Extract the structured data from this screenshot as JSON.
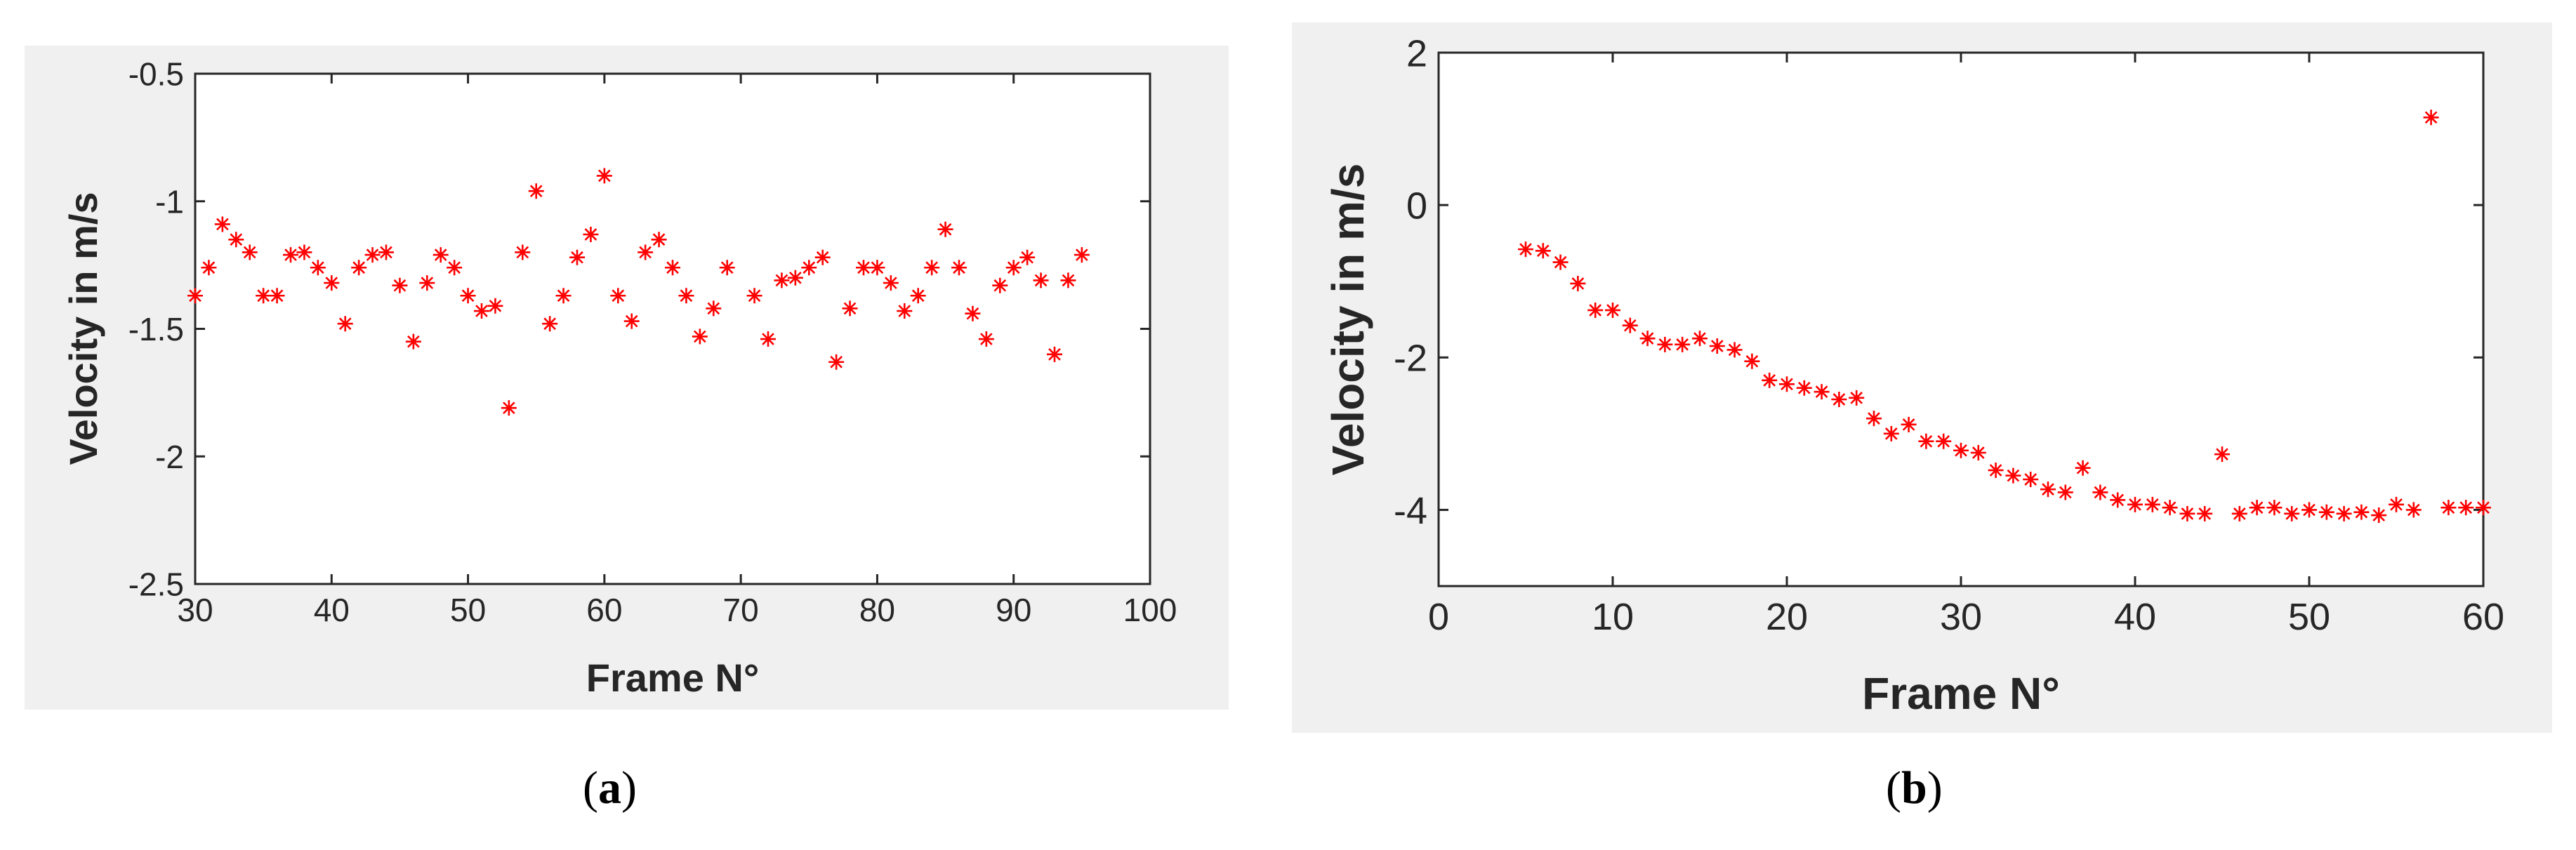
{
  "chart_data": [
    {
      "type": "scatter",
      "marker": "*",
      "color": "#ff0000",
      "xlabel": "Frame N°",
      "ylabel": "Velocity in m/s",
      "xlim": [
        30,
        100
      ],
      "ylim": [
        -2.5,
        -0.5
      ],
      "xticks": [
        "30",
        "40",
        "50",
        "60",
        "70",
        "80",
        "90",
        "100"
      ],
      "yticks": [
        "-0.5",
        "-1",
        "-1.5",
        "-2",
        "-2.5"
      ],
      "xtick_values": [
        30,
        40,
        50,
        60,
        70,
        80,
        90,
        100
      ],
      "ytick_values": [
        -0.5,
        -1,
        -1.5,
        -2,
        -2.5
      ],
      "grid": false,
      "caption": "a",
      "series": [
        {
          "x": [
            30,
            31,
            32,
            33,
            34,
            35,
            36,
            37,
            38,
            39,
            40,
            41,
            42,
            43,
            44,
            45,
            46,
            47,
            48,
            49,
            50,
            51,
            52,
            53,
            54,
            55,
            56,
            57,
            58,
            59,
            60,
            61,
            62,
            63,
            64,
            65,
            66,
            67,
            68,
            69,
            71,
            72,
            73,
            74,
            75,
            76,
            77,
            78,
            79,
            80,
            81,
            82,
            83,
            84,
            85,
            86,
            87,
            88,
            89,
            90,
            91,
            92,
            93,
            94,
            95
          ],
          "y": [
            -1.37,
            -1.26,
            -1.09,
            -1.15,
            -1.2,
            -1.37,
            -1.37,
            -1.21,
            -1.2,
            -1.26,
            -1.32,
            -1.48,
            -1.26,
            -1.21,
            -1.2,
            -1.33,
            -1.55,
            -1.32,
            -1.21,
            -1.26,
            -1.37,
            -1.43,
            -1.41,
            -1.81,
            -1.2,
            -0.96,
            -1.48,
            -1.37,
            -1.22,
            -1.13,
            -0.9,
            -1.37,
            -1.47,
            -1.2,
            -1.15,
            -1.26,
            -1.37,
            -1.53,
            -1.42,
            -1.26,
            -1.37,
            -1.54,
            -1.31,
            -1.3,
            -1.26,
            -1.22,
            -1.63,
            -1.42,
            -1.26,
            -1.26,
            -1.32,
            -1.43,
            -1.37,
            -1.26,
            -1.11,
            -1.26,
            -1.44,
            -1.54,
            -1.33,
            -1.26,
            -1.22,
            -1.31,
            -1.6,
            -1.31,
            -1.21
          ]
        }
      ]
    },
    {
      "type": "scatter",
      "marker": "*",
      "color": "#ff0000",
      "xlabel": "Frame N°",
      "ylabel": "Velocity in m/s",
      "xlim": [
        0,
        60
      ],
      "ylim": [
        -5,
        2
      ],
      "xticks": [
        "0",
        "10",
        "20",
        "30",
        "40",
        "50",
        "60"
      ],
      "yticks": [
        "2",
        "0",
        "-2",
        "-4"
      ],
      "xtick_values": [
        0,
        10,
        20,
        30,
        40,
        50,
        60
      ],
      "ytick_values": [
        2,
        0,
        -2,
        -4
      ],
      "grid": false,
      "caption": "b",
      "series": [
        {
          "x": [
            5,
            6,
            7,
            8,
            9,
            10,
            11,
            12,
            13,
            14,
            15,
            16,
            17,
            18,
            19,
            20,
            21,
            22,
            23,
            24,
            25,
            26,
            27,
            28,
            29,
            30,
            31,
            32,
            33,
            34,
            35,
            36,
            37,
            38,
            39,
            40,
            41,
            42,
            43,
            44,
            45,
            46,
            47,
            48,
            49,
            50,
            51,
            52,
            53,
            54,
            55,
            56,
            57,
            58,
            59,
            60
          ],
          "y": [
            -0.58,
            -0.6,
            -0.75,
            -1.03,
            -1.38,
            -1.38,
            -1.58,
            -1.75,
            -1.83,
            -1.83,
            -1.75,
            -1.85,
            -1.9,
            -2.05,
            -2.3,
            -2.35,
            -2.4,
            -2.45,
            -2.55,
            -2.53,
            -2.8,
            -3.0,
            -2.88,
            -3.1,
            -3.1,
            -3.22,
            -3.25,
            -3.48,
            -3.55,
            -3.6,
            -3.73,
            -3.77,
            -3.45,
            -3.77,
            -3.87,
            -3.93,
            -3.93,
            -3.97,
            -4.05,
            -4.05,
            -3.27,
            -4.05,
            -3.97,
            -3.97,
            -4.05,
            -4.0,
            -4.03,
            -4.05,
            -4.03,
            -4.07,
            -3.93,
            -4.0,
            1.15,
            -3.97,
            -3.97,
            -3.97
          ]
        }
      ]
    }
  ]
}
